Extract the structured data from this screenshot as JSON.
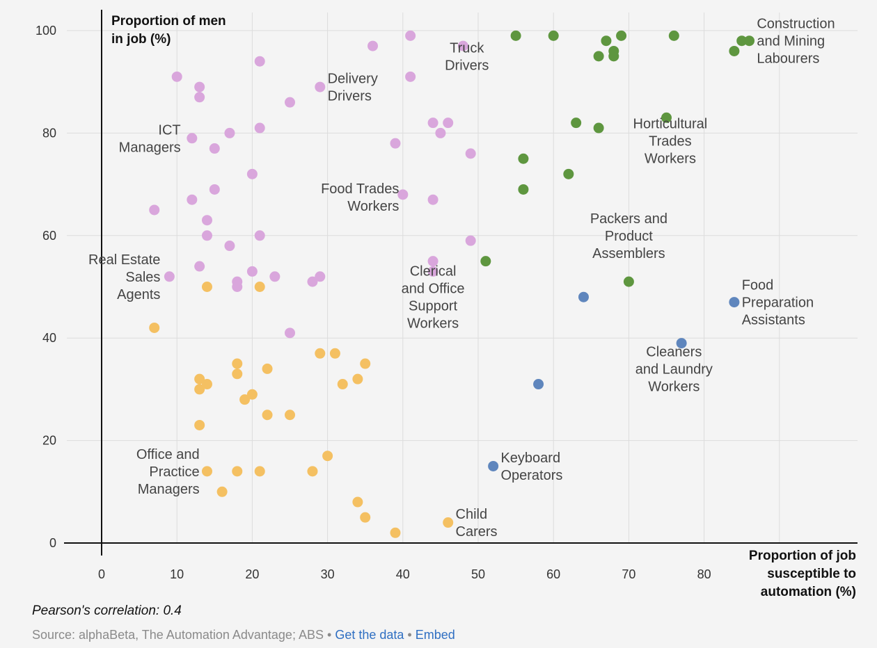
{
  "chart_data": {
    "type": "scatter",
    "xlabel": [
      "Proportion of job",
      "susceptible to",
      "automation (%)"
    ],
    "ylabel": [
      "Proportion of men",
      "in job (%)"
    ],
    "xlim": [
      -13,
      100
    ],
    "ylim": [
      0,
      100
    ],
    "xticks": [
      0,
      10,
      20,
      30,
      40,
      50,
      60,
      70,
      80
    ],
    "yticks": [
      0,
      20,
      40,
      60,
      80,
      100
    ],
    "grid": true,
    "legend": "none",
    "colors": {
      "pink": "#d9a6dc",
      "orange": "#f4c062",
      "green": "#5e963f",
      "blue": "#5f86bd"
    },
    "series": [
      {
        "color_key": "pink",
        "points": [
          [
            10,
            91
          ],
          [
            13,
            89
          ],
          [
            13,
            87
          ],
          [
            21,
            94
          ],
          [
            12,
            79
          ],
          [
            15,
            77
          ],
          [
            17,
            80
          ],
          [
            21,
            81
          ],
          [
            20,
            72
          ],
          [
            15,
            69
          ],
          [
            12,
            67
          ],
          [
            7,
            65
          ],
          [
            14,
            63
          ],
          [
            14,
            60
          ],
          [
            17,
            58
          ],
          [
            21,
            60
          ],
          [
            13,
            54
          ],
          [
            9,
            52
          ],
          [
            20,
            53
          ],
          [
            18,
            51
          ],
          [
            18,
            50
          ],
          [
            23,
            52
          ],
          [
            28,
            51
          ],
          [
            29,
            52
          ],
          [
            25,
            41
          ],
          [
            25,
            86
          ],
          [
            29,
            89
          ],
          [
            36,
            97
          ],
          [
            41,
            99
          ],
          [
            41,
            91
          ],
          [
            39,
            78
          ],
          [
            40,
            68
          ],
          [
            44,
            67
          ],
          [
            44,
            82
          ],
          [
            45,
            80
          ],
          [
            46,
            82
          ],
          [
            48,
            97
          ],
          [
            49,
            76
          ],
          [
            49,
            59
          ],
          [
            44,
            55
          ],
          [
            44,
            53
          ]
        ]
      },
      {
        "color_key": "orange",
        "points": [
          [
            7,
            42
          ],
          [
            14,
            50
          ],
          [
            21,
            50
          ],
          [
            18,
            35
          ],
          [
            18,
            33
          ],
          [
            22,
            34
          ],
          [
            13,
            32
          ],
          [
            13,
            30
          ],
          [
            14,
            31
          ],
          [
            13,
            23
          ],
          [
            19,
            28
          ],
          [
            20,
            29
          ],
          [
            22,
            25
          ],
          [
            25,
            25
          ],
          [
            29,
            37
          ],
          [
            31,
            37
          ],
          [
            35,
            35
          ],
          [
            34,
            32
          ],
          [
            32,
            31
          ],
          [
            14,
            14
          ],
          [
            18,
            14
          ],
          [
            21,
            14
          ],
          [
            16,
            10
          ],
          [
            28,
            14
          ],
          [
            30,
            17
          ],
          [
            34,
            8
          ],
          [
            35,
            5
          ],
          [
            39,
            2
          ],
          [
            46,
            4
          ]
        ]
      },
      {
        "color_key": "green",
        "points": [
          [
            55,
            99
          ],
          [
            60,
            99
          ],
          [
            67,
            98
          ],
          [
            69,
            99
          ],
          [
            76,
            99
          ],
          [
            66,
            95
          ],
          [
            68,
            96
          ],
          [
            68,
            95
          ],
          [
            84,
            96
          ],
          [
            85,
            98
          ],
          [
            86,
            98
          ],
          [
            63,
            82
          ],
          [
            66,
            81
          ],
          [
            75,
            83
          ],
          [
            56,
            75
          ],
          [
            62,
            72
          ],
          [
            56,
            69
          ],
          [
            51,
            55
          ],
          [
            70,
            51
          ]
        ]
      },
      {
        "color_key": "blue",
        "points": [
          [
            64,
            48
          ],
          [
            58,
            31
          ],
          [
            77,
            39
          ],
          [
            84,
            47
          ],
          [
            52,
            15
          ]
        ]
      }
    ],
    "annotations": [
      {
        "lines": [
          "Construction",
          "and Mining",
          "Labourers"
        ],
        "x": 87,
        "y": 98,
        "anchor": "start"
      },
      {
        "lines": [
          "Truck",
          "Drivers"
        ],
        "x": 48.5,
        "y": 95,
        "anchor": "middle"
      },
      {
        "lines": [
          "Delivery",
          "Drivers"
        ],
        "x": 30,
        "y": 89,
        "anchor": "start"
      },
      {
        "lines": [
          "ICT",
          "Managers"
        ],
        "x": 10.5,
        "y": 79,
        "anchor": "end"
      },
      {
        "lines": [
          "Horticultural",
          "Trades",
          "Workers"
        ],
        "x": 75.5,
        "y": 78.5,
        "anchor": "middle"
      },
      {
        "lines": [
          "Food Trades",
          "Workers"
        ],
        "x": 39.5,
        "y": 67.5,
        "anchor": "end"
      },
      {
        "lines": [
          "Packers and",
          "Product",
          "Assemblers"
        ],
        "x": 70,
        "y": 60,
        "anchor": "middle"
      },
      {
        "lines": [
          "Real Estate",
          "Sales",
          "Agents"
        ],
        "x": 7.8,
        "y": 52,
        "anchor": "end"
      },
      {
        "lines": [
          "Clerical",
          "and Office",
          "Support",
          "Workers"
        ],
        "x": 44,
        "y": 48,
        "anchor": "middle"
      },
      {
        "lines": [
          "Food",
          "Preparation",
          "Assistants"
        ],
        "x": 85,
        "y": 47,
        "anchor": "start"
      },
      {
        "lines": [
          "Cleaners",
          "and Laundry",
          "Workers"
        ],
        "x": 76,
        "y": 34,
        "anchor": "middle"
      },
      {
        "lines": [
          "Keyboard",
          "Operators"
        ],
        "x": 53,
        "y": 15,
        "anchor": "start"
      },
      {
        "lines": [
          "Office and",
          "Practice",
          "Managers"
        ],
        "x": 13,
        "y": 14,
        "anchor": "end"
      },
      {
        "lines": [
          "Child",
          "Carers"
        ],
        "x": 47,
        "y": 4,
        "anchor": "start"
      }
    ]
  },
  "footer": {
    "note": "Pearson's correlation: 0.4",
    "source_text": "Source: alphaBeta, The Automation Advantage; ABS",
    "separator": "•",
    "link_data": "Get the data",
    "link_embed": "Embed"
  }
}
